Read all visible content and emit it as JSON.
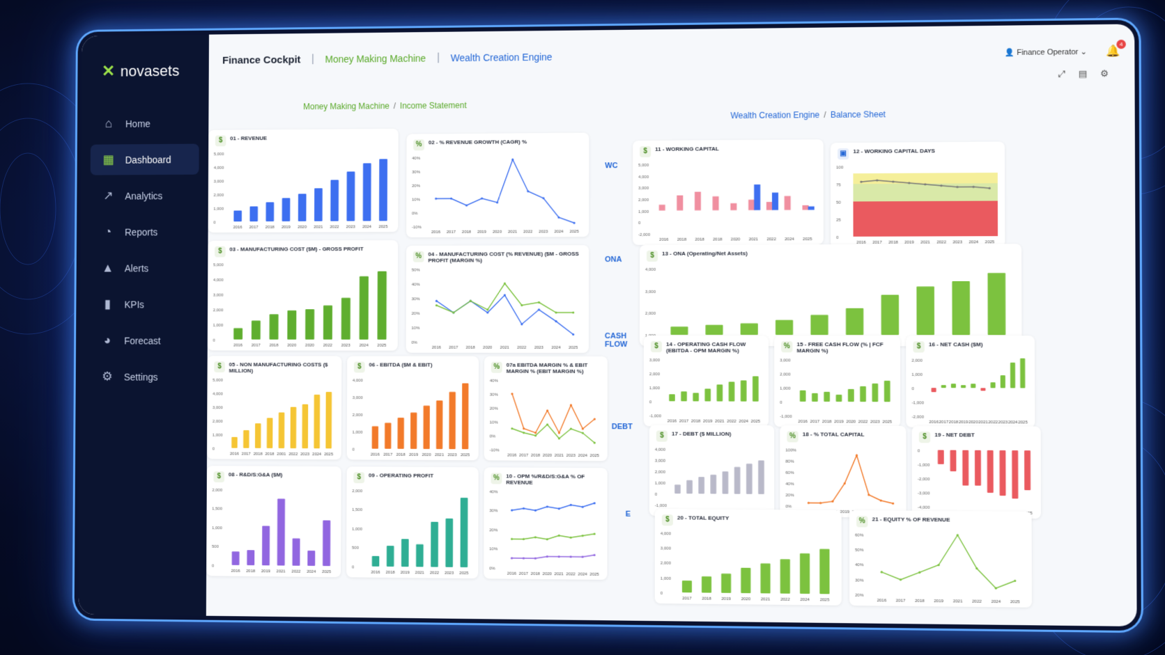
{
  "app": {
    "brand": "novasets"
  },
  "sidebar": {
    "items": [
      {
        "label": "Home",
        "icon": "home-icon"
      },
      {
        "label": "Dashboard",
        "icon": "grid-icon",
        "active": true
      },
      {
        "label": "Analytics",
        "icon": "trend-icon"
      },
      {
        "label": "Reports",
        "icon": "pie-icon"
      },
      {
        "label": "Alerts",
        "icon": "warning-icon"
      },
      {
        "label": "KPIs",
        "icon": "bars-icon"
      },
      {
        "label": "Forecast",
        "icon": "forecast-icon"
      },
      {
        "label": "Settings",
        "icon": "gear-icon"
      }
    ]
  },
  "topbar": {
    "title": "Finance Cockpit",
    "tab_green": "Money Making Machine",
    "tab_blue": "Wealth Creation Engine",
    "user": "Finance Operator",
    "notifications": "4"
  },
  "sections": {
    "left": {
      "a": "Money Making Machine",
      "b": "Income Statement"
    },
    "right": {
      "a": "Wealth Creation Engine",
      "b": "Balance Sheet"
    }
  },
  "row_labels": [
    "WC",
    "ONA",
    "CASH FLOW",
    "DEBT",
    "E"
  ],
  "colors": {
    "green": "#7cc23f",
    "blue": "#3d6ff0",
    "yellow": "#f5c534",
    "orange": "#f27a2a",
    "purple": "#9166e0",
    "teal": "#2fae94",
    "red": "#ea5a5f",
    "pink": "#f08fa0"
  },
  "cards": [
    {
      "id": "c01",
      "badge": "$",
      "title": "01 - REVENUE",
      "type": "bar",
      "color": "#3d6ff0",
      "chart_data": {
        "type": "bar",
        "categories": [
          "2016",
          "2017",
          "2018",
          "2019",
          "2020",
          "2021",
          "2022",
          "2023",
          "2024",
          "2025"
        ],
        "values": [
          800,
          1100,
          1400,
          1700,
          2000,
          2400,
          3000,
          3600,
          4200,
          4500
        ],
        "ylim": [
          0,
          5000
        ],
        "yticks": [
          "0",
          "1,000",
          "2,000",
          "3,000",
          "4,000",
          "5,000"
        ],
        "ylabel": "$"
      }
    },
    {
      "id": "c02",
      "badge": "%",
      "title": "02 - % REVENUE GROWTH (CAGR) %",
      "type": "line",
      "color": "#3d6ff0",
      "chart_data": {
        "type": "line",
        "categories": [
          "2016",
          "2017",
          "2018",
          "2019",
          "2020",
          "2021",
          "2022",
          "2023",
          "2024",
          "2025"
        ],
        "series": [
          {
            "values": [
              10,
              10,
              5,
              10,
              7,
              38,
              15,
              10,
              -4,
              -8
            ]
          }
        ],
        "ylim": [
          -10,
          40
        ],
        "yticks": [
          "-10%",
          "0%",
          "10%",
          "20%",
          "30%",
          "40%"
        ]
      }
    },
    {
      "id": "c03",
      "badge": "$",
      "title": "03 - MANUFACTURING COST ($M) - GROSS PROFIT",
      "type": "bar",
      "color": "#5fae2f",
      "chart_data": {
        "type": "bar",
        "categories": [
          "2016",
          "2017",
          "2018",
          "2020",
          "2020",
          "2022",
          "2023",
          "2024",
          "2025"
        ],
        "values": [
          900,
          1500,
          2000,
          2300,
          2400,
          2700,
          3300,
          5000,
          5400
        ],
        "ylim": [
          0,
          6000
        ],
        "yticks": [
          "0",
          "1,000",
          "2,000",
          "3,000",
          "4,000",
          "5,000"
        ],
        "ylabel": "$"
      }
    },
    {
      "id": "c04",
      "badge": "%",
      "title": "04 - MANUFACTURING COST (% REVENUE) ($M - GROSS PROFIT (MARGIN %)",
      "type": "line",
      "chart_data": {
        "type": "line",
        "categories": [
          "2016",
          "2017",
          "2018",
          "2020",
          "2021",
          "2022",
          "2023",
          "2024",
          "2025"
        ],
        "series": [
          {
            "color": "#3d6ff0",
            "values": [
              28,
              20,
              28,
              20,
              32,
              12,
              22,
              14,
              5
            ]
          },
          {
            "color": "#7cc23f",
            "values": [
              25,
              20,
              28,
              22,
              40,
              25,
              27,
              20,
              20
            ]
          }
        ],
        "ylim": [
          0,
          50
        ],
        "yticks": [
          "0%",
          "10%",
          "20%",
          "30%",
          "40%",
          "50%"
        ]
      }
    },
    {
      "id": "c05",
      "badge": "$",
      "title": "05 - NON MANUFACTURING COSTS ($ MILLION)",
      "type": "bar",
      "color": "#f5c534",
      "chart_data": {
        "type": "bar",
        "categories": [
          "2016",
          "2017",
          "2018",
          "2018",
          "2001",
          "2022",
          "2023",
          "2024",
          "2025"
        ],
        "values": [
          800,
          1300,
          1800,
          2200,
          2600,
          3000,
          3200,
          3900,
          4100
        ],
        "ylim": [
          0,
          5000
        ],
        "yticks": [
          "0",
          "1,000",
          "2,000",
          "3,000",
          "4,000",
          "5,000"
        ],
        "ylabel": "$"
      }
    },
    {
      "id": "c06",
      "badge": "$",
      "title": "06 - EBITDA ($M & EBIT)",
      "type": "bar",
      "color": "#f27a2a",
      "chart_data": {
        "type": "bar",
        "categories": [
          "2016",
          "2017",
          "2018",
          "2019",
          "2020",
          "2021",
          "2023",
          "2025"
        ],
        "values": [
          1300,
          1500,
          1800,
          2100,
          2500,
          2800,
          3300,
          3800
        ],
        "ylim": [
          0,
          4000
        ],
        "yticks": [
          "0",
          "1,000",
          "2,000",
          "3,000",
          "4,000"
        ],
        "ylabel": "$"
      }
    },
    {
      "id": "c07",
      "badge": "%",
      "title": "07a EBITDA MARGIN % & EBIT MARGIN % (EBIT MARGIN %)",
      "type": "line",
      "chart_data": {
        "type": "line",
        "categories": [
          "2016",
          "2017",
          "2018",
          "2020",
          "2021",
          "2023",
          "2024",
          "2025"
        ],
        "series": [
          {
            "color": "#f27a2a",
            "values": [
              30,
              5,
              2,
              18,
              2,
              22,
              5,
              12
            ]
          },
          {
            "color": "#7cc23f",
            "values": [
              5,
              2,
              0,
              8,
              -2,
              5,
              2,
              -5
            ]
          }
        ],
        "ylim": [
          -10,
          40
        ],
        "yticks": [
          "-10%",
          "0%",
          "10%",
          "20%",
          "30%",
          "40%"
        ]
      }
    },
    {
      "id": "c08",
      "badge": "$",
      "title": "08 - R&D/S:G&A ($M)",
      "type": "bar",
      "color": "#9166e0",
      "chart_data": {
        "type": "bar",
        "categories": [
          "2016",
          "2018",
          "2019",
          "2021",
          "2022",
          "2024",
          "2025"
        ],
        "values": [
          450,
          500,
          1300,
          2200,
          900,
          500,
          1500
        ],
        "ylim": [
          0,
          2500
        ],
        "yticks": [
          "0",
          "500",
          "1,000",
          "1,500",
          "2,000"
        ],
        "ylabel": "$"
      }
    },
    {
      "id": "c09",
      "badge": "$",
      "title": "09 - OPERATING PROFIT",
      "type": "bar",
      "color": "#2fae94",
      "chart_data": {
        "type": "bar",
        "categories": [
          "2016",
          "2018",
          "2019",
          "2021",
          "2022",
          "2023",
          "2025"
        ],
        "values": [
          300,
          600,
          800,
          650,
          1300,
          1400,
          2000
        ],
        "ylim": [
          0,
          2200
        ],
        "yticks": [
          "0",
          "500",
          "1,000",
          "1,500",
          "2,000"
        ],
        "ylabel": "$"
      }
    },
    {
      "id": "c10",
      "badge": "%",
      "title": "10 - OPM %/R&D/S:G&A % OF REVENUE",
      "type": "line",
      "chart_data": {
        "type": "line",
        "categories": [
          "2016",
          "2017",
          "2018",
          "2020",
          "2021",
          "2022",
          "2024",
          "2025"
        ],
        "series": [
          {
            "color": "#3d6ff0",
            "values": [
              30,
              31,
              30,
              32,
              31,
              33,
              32,
              34
            ]
          },
          {
            "color": "#7cc23f",
            "values": [
              15,
              15,
              16,
              15,
              17,
              16,
              17,
              18
            ]
          },
          {
            "color": "#9166e0",
            "values": [
              5,
              5,
              5,
              6,
              6,
              6,
              6,
              7
            ]
          }
        ],
        "ylim": [
          0,
          40
        ],
        "yticks": [
          "0%",
          "10%",
          "20%",
          "30%",
          "40%"
        ]
      }
    },
    {
      "id": "c11",
      "badge": "$",
      "title": "11 - WORKING CAPITAL",
      "type": "mixbar",
      "chart_data": {
        "type": "bar",
        "categories": [
          "2016",
          "2018",
          "2018",
          "2018",
          "2020",
          "2021",
          "2022",
          "2024",
          "2025"
        ],
        "series": [
          {
            "color": "#f08fa0",
            "values": [
              500,
              1300,
              1600,
              1200,
              600,
              900,
              700,
              1200,
              400
            ]
          },
          {
            "color": "#3d6ff0",
            "values": [
              0,
              0,
              0,
              0,
              0,
              2200,
              1500,
              0,
              300
            ]
          }
        ],
        "ylim": [
          -2000,
          4000
        ],
        "yticks": [
          "-2,000",
          "0",
          "1,000",
          "2,000",
          "3,000",
          "4,000",
          "5,000"
        ]
      }
    },
    {
      "id": "c12",
      "badge": "cal",
      "title": "12 - WORKING CAPITAL DAYS",
      "type": "zone",
      "chart_data": {
        "type": "area",
        "categories": [
          "2016",
          "2017",
          "2018",
          "2019",
          "2021",
          "2022",
          "2023",
          "2024",
          "2025"
        ],
        "series": [
          {
            "values": [
              78,
              80,
              78,
              76,
              74,
              72,
              70,
              70,
              68
            ]
          }
        ],
        "ylim": [
          0,
          100
        ],
        "yticks": [
          "0",
          "25",
          "50",
          "75",
          "100"
        ]
      }
    },
    {
      "id": "c13",
      "badge": "$",
      "title": "13 - ONA (Operating/Net Assets)",
      "type": "bar",
      "color": "#7cc23f",
      "chart_data": {
        "type": "bar",
        "categories": [
          "2016",
          "2017",
          "2018",
          "2019",
          "2020",
          "2021",
          "2022",
          "2023",
          "2024",
          "2025"
        ],
        "values": [
          500,
          600,
          700,
          900,
          1200,
          1600,
          2400,
          2900,
          3200,
          3700
        ],
        "ylim": [
          0,
          4000
        ],
        "yticks": [
          "1,000",
          "2,000",
          "3,000",
          "4,000"
        ]
      }
    },
    {
      "id": "c14",
      "badge": "$",
      "title": "14 - OPERATING CASH FLOW (EBITDA - OPM MARGIN %)",
      "type": "bar",
      "color": "#7cc23f",
      "chart_data": {
        "type": "bar",
        "categories": [
          "2016",
          "2017",
          "2018",
          "2019",
          "2021",
          "2022",
          "2024",
          "2025"
        ],
        "values": [
          500,
          700,
          600,
          900,
          1200,
          1400,
          1500,
          1800
        ],
        "ylim": [
          -1000,
          3000
        ],
        "yticks": [
          "-1,000",
          "0",
          "1,000",
          "2,000",
          "3,000"
        ]
      }
    },
    {
      "id": "c15",
      "badge": "%",
      "title": "15 - FREE CASH FLOW (% | FCF MARGIN %)",
      "type": "bar",
      "color": "#7cc23f",
      "chart_data": {
        "type": "bar",
        "categories": [
          "2016",
          "2017",
          "2018",
          "2019",
          "2020",
          "2022",
          "2023",
          "2025"
        ],
        "values": [
          800,
          600,
          700,
          500,
          900,
          1100,
          1300,
          1500
        ],
        "ylim": [
          -1000,
          3000
        ],
        "yticks": [
          "-1,000",
          "0",
          "1,000",
          "2,000",
          "3,000"
        ]
      }
    },
    {
      "id": "c16",
      "badge": "$",
      "title": "16 - NET CASH ($M)",
      "type": "bar",
      "color": "#7cc23f",
      "chart_data": {
        "type": "bar",
        "categories": [
          "2016",
          "2017",
          "2018",
          "2019",
          "2020",
          "2021",
          "2022",
          "2023",
          "2024",
          "2025"
        ],
        "values": [
          -300,
          200,
          300,
          200,
          300,
          -200,
          400,
          900,
          1800,
          2100
        ],
        "ylim": [
          -2000,
          2000
        ],
        "yticks": [
          "-2,000",
          "-1,000",
          "0",
          "1,000",
          "2,000"
        ]
      }
    },
    {
      "id": "c17",
      "badge": "$",
      "title": "17 - DEBT ($ MILLION)",
      "type": "bar",
      "color": "#b9b9c9",
      "chart_data": {
        "type": "bar",
        "categories": [
          "2016",
          "2017",
          "2018",
          "2019",
          "2021",
          "2022",
          "2024",
          "2025"
        ],
        "values": [
          800,
          1200,
          1500,
          1700,
          2000,
          2400,
          2700,
          3000
        ],
        "ylim": [
          -1000,
          4000
        ],
        "yticks": [
          "-1,000",
          "0",
          "1,000",
          "2,000",
          "3,000",
          "4,000"
        ]
      }
    },
    {
      "id": "c18",
      "badge": "%",
      "title": "18 - % TOTAL CAPITAL",
      "type": "line",
      "chart_data": {
        "type": "line",
        "categories": [
          "2016",
          "2017",
          "2018",
          "2019",
          "2021",
          "2022",
          "2023",
          "2025"
        ],
        "series": [
          {
            "color": "#f27a2a",
            "values": [
              5,
              5,
              8,
              40,
              90,
              20,
              10,
              5
            ]
          }
        ],
        "ylim": [
          0,
          100
        ],
        "yticks": [
          "0%",
          "20%",
          "40%",
          "60%",
          "80%",
          "100%"
        ]
      }
    },
    {
      "id": "c19",
      "badge": "$",
      "title": "19 - NET DEBT",
      "type": "bar",
      "color": "#ea5a5f",
      "chart_data": {
        "type": "bar",
        "categories": [
          "2016",
          "2017",
          "2018",
          "2019",
          "2021",
          "2023",
          "2024",
          "2025"
        ],
        "values": [
          -1000,
          -1500,
          -2500,
          -2500,
          -3000,
          -3200,
          -3400,
          -2800
        ],
        "ylim": [
          -4000,
          0
        ],
        "yticks": [
          "-4,000",
          "-3,000",
          "-2,000",
          "-1,000",
          "0"
        ]
      }
    },
    {
      "id": "c20",
      "badge": "$",
      "title": "20 - TOTAL EQUITY",
      "type": "bar",
      "color": "#7cc23f",
      "chart_data": {
        "type": "bar",
        "categories": [
          "2017",
          "2018",
          "2019",
          "2020",
          "2021",
          "2022",
          "2024",
          "2025"
        ],
        "values": [
          800,
          1100,
          1300,
          1700,
          2000,
          2300,
          2700,
          3000
        ],
        "ylim": [
          0,
          4000
        ],
        "yticks": [
          "0",
          "1,000",
          "2,000",
          "3,000",
          "4,000"
        ]
      }
    },
    {
      "id": "c21",
      "badge": "%",
      "title": "21 - EQUITY % OF REVENUE",
      "type": "line",
      "chart_data": {
        "type": "line",
        "categories": [
          "2016",
          "2017",
          "2018",
          "2019",
          "2021",
          "2022",
          "2024",
          "2025"
        ],
        "series": [
          {
            "color": "#7cc23f",
            "values": [
              35,
              30,
              35,
              40,
              60,
              38,
              25,
              30
            ]
          }
        ],
        "ylim": [
          20,
          60
        ],
        "yticks": [
          "20%",
          "30%",
          "40%",
          "50%",
          "60%"
        ]
      }
    }
  ]
}
